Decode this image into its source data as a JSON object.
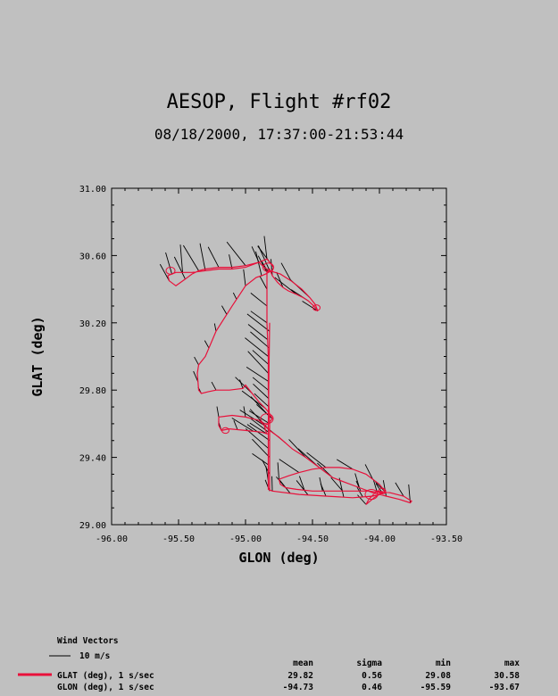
{
  "header": {
    "title": "AESOP, Flight #rf02",
    "subtitle": "08/18/2000, 17:37:00-21:53:44"
  },
  "chart_data": {
    "type": "line",
    "xlabel": "GLON (deg)",
    "ylabel": "GLAT (deg)",
    "xlim": [
      -96.0,
      -93.5
    ],
    "ylim": [
      29.0,
      31.0
    ],
    "x_ticks": [
      "-96.00",
      "-95.50",
      "-95.00",
      "-94.50",
      "-94.00",
      "-93.50"
    ],
    "y_ticks": [
      "29.00",
      "29.40",
      "29.80",
      "30.20",
      "30.60",
      "31.00"
    ],
    "track_color": "#e8103a",
    "wind_color": "#000000",
    "series": [
      {
        "name": "GLAT (deg), 1 s/sec",
        "x": [
          -94.82,
          -94.82,
          -94.82,
          -94.83,
          -94.83,
          -94.84,
          -94.84,
          -94.84,
          -94.84,
          -94.82,
          -94.8,
          -94.76,
          -94.72,
          -94.68,
          -94.62,
          -94.57,
          -94.53,
          -94.49,
          -94.46,
          -94.48,
          -94.52,
          -94.58,
          -94.66,
          -94.74,
          -94.82,
          -94.86,
          -94.9,
          -95.0,
          -95.1,
          -95.2,
          -95.3,
          -95.4,
          -95.47,
          -95.52,
          -95.55,
          -95.58,
          -95.57,
          -95.52,
          -95.45,
          -95.4,
          -95.35,
          -95.3,
          -95.2,
          -95.1,
          -95.0,
          -94.9,
          -94.84,
          -94.81,
          -94.79,
          -94.8,
          -94.83,
          -94.85,
          -94.88,
          -94.92,
          -95.0,
          -95.1,
          -95.22,
          -95.3,
          -95.35,
          -95.36,
          -95.35,
          -95.33,
          -95.28,
          -95.22,
          -95.12,
          -95.02,
          -95.0,
          -94.95,
          -94.9,
          -94.85,
          -94.82,
          -94.8,
          -94.83,
          -94.86,
          -94.85,
          -94.84,
          -94.88,
          -95.0,
          -95.12,
          -95.18,
          -95.2,
          -95.2,
          -95.1,
          -95.0,
          -94.9,
          -94.82,
          -94.75,
          -94.65,
          -94.55,
          -94.45,
          -94.35,
          -94.25,
          -94.15,
          -94.05,
          -93.95,
          -93.85,
          -93.77,
          -93.76,
          -93.82,
          -93.92,
          -94.02,
          -94.08,
          -94.1,
          -94.04,
          -93.98,
          -94.08,
          -94.2,
          -94.35,
          -94.5,
          -94.62,
          -94.7,
          -94.74,
          -94.75,
          -94.68,
          -94.6,
          -94.5,
          -94.4,
          -94.3,
          -94.2,
          -94.1,
          -94.0,
          -93.95,
          -94.05,
          -94.2,
          -94.4,
          -94.6,
          -94.8,
          -94.83,
          -94.83,
          -94.82
        ],
        "y": [
          29.2,
          29.4,
          29.6,
          29.8,
          30.0,
          30.2,
          30.35,
          30.45,
          30.5,
          30.52,
          30.48,
          30.44,
          30.41,
          30.39,
          30.37,
          30.35,
          30.33,
          30.3,
          30.27,
          30.31,
          30.35,
          30.4,
          30.45,
          30.49,
          30.51,
          30.53,
          30.56,
          30.53,
          30.52,
          30.52,
          30.51,
          30.5,
          30.5,
          30.5,
          30.49,
          30.48,
          30.45,
          30.42,
          30.46,
          30.49,
          30.51,
          30.52,
          30.53,
          30.53,
          30.54,
          30.56,
          30.58,
          30.55,
          30.53,
          30.51,
          30.5,
          30.49,
          30.48,
          30.47,
          30.42,
          30.3,
          30.15,
          30.0,
          29.95,
          29.9,
          29.8,
          29.78,
          29.79,
          29.8,
          29.8,
          29.81,
          29.83,
          29.78,
          29.73,
          29.69,
          29.66,
          29.63,
          29.6,
          29.59,
          29.56,
          29.54,
          29.55,
          29.56,
          29.57,
          29.56,
          29.59,
          29.64,
          29.65,
          29.64,
          29.62,
          29.56,
          29.52,
          29.45,
          29.4,
          29.34,
          29.28,
          29.25,
          29.22,
          29.19,
          29.17,
          29.15,
          29.13,
          29.14,
          29.17,
          29.19,
          29.2,
          29.15,
          29.12,
          29.16,
          29.19,
          29.2,
          29.2,
          29.2,
          29.2,
          29.21,
          29.22,
          29.24,
          29.27,
          29.29,
          29.31,
          29.33,
          29.34,
          29.34,
          29.33,
          29.3,
          29.24,
          29.19,
          29.17,
          29.16,
          29.17,
          29.18,
          29.2,
          29.21,
          29.6,
          30.2
        ]
      }
    ],
    "wind_vectors_label": "Wind Vectors",
    "wind_scale_label": "10 m/s",
    "stats": {
      "columns": [
        "mean",
        "sigma",
        "min",
        "max"
      ],
      "rows": [
        {
          "label": "GLAT (deg), 1 s/sec",
          "values": [
            "29.82",
            "0.56",
            "29.08",
            "30.58"
          ]
        },
        {
          "label": "GLON (deg), 1 s/sec",
          "values": [
            "-94.73",
            "0.46",
            "-95.59",
            "-93.67"
          ]
        }
      ]
    }
  }
}
